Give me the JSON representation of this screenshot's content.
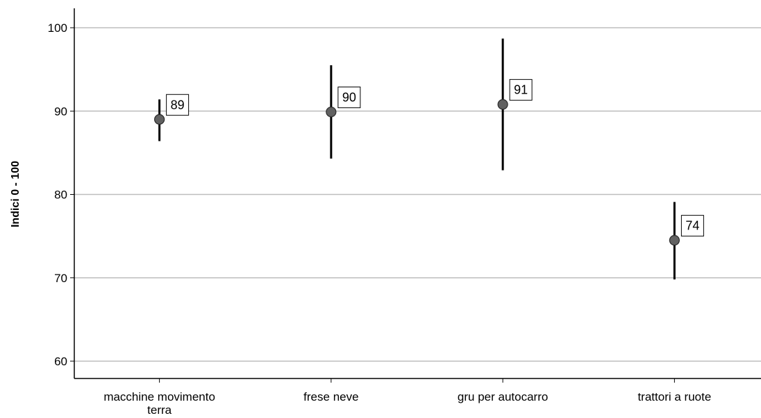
{
  "chart_data": {
    "type": "scatter",
    "ylabel": "Indici   0 - 100",
    "xlabel": "",
    "ylim": [
      58,
      103
    ],
    "yticks": [
      60,
      70,
      80,
      90,
      100
    ],
    "grid": true,
    "categories": [
      "macchine movimento terra",
      "frese neve",
      "gru per autocarro",
      "trattori a ruote"
    ],
    "category_lines": [
      [
        "macchine movimento",
        "terra"
      ],
      [
        "frese neve"
      ],
      [
        "gru per autocarro"
      ],
      [
        "trattori a ruote"
      ]
    ],
    "points": [
      {
        "category": "macchine movimento terra",
        "value": 89,
        "low": 86.4,
        "high": 91.4,
        "label": "89"
      },
      {
        "category": "frese neve",
        "value": 89.9,
        "low": 84.3,
        "high": 95.5,
        "label": "90"
      },
      {
        "category": "gru per autocarro",
        "value": 90.8,
        "low": 82.9,
        "high": 98.7,
        "label": "91"
      },
      {
        "category": "trattori a ruote",
        "value": 74.5,
        "low": 69.8,
        "high": 79.1,
        "label": "74"
      }
    ],
    "colors": {
      "marker": "#616161",
      "errorbar": "#000000",
      "grid": "#bdbdbd",
      "axis": "#000000"
    }
  }
}
